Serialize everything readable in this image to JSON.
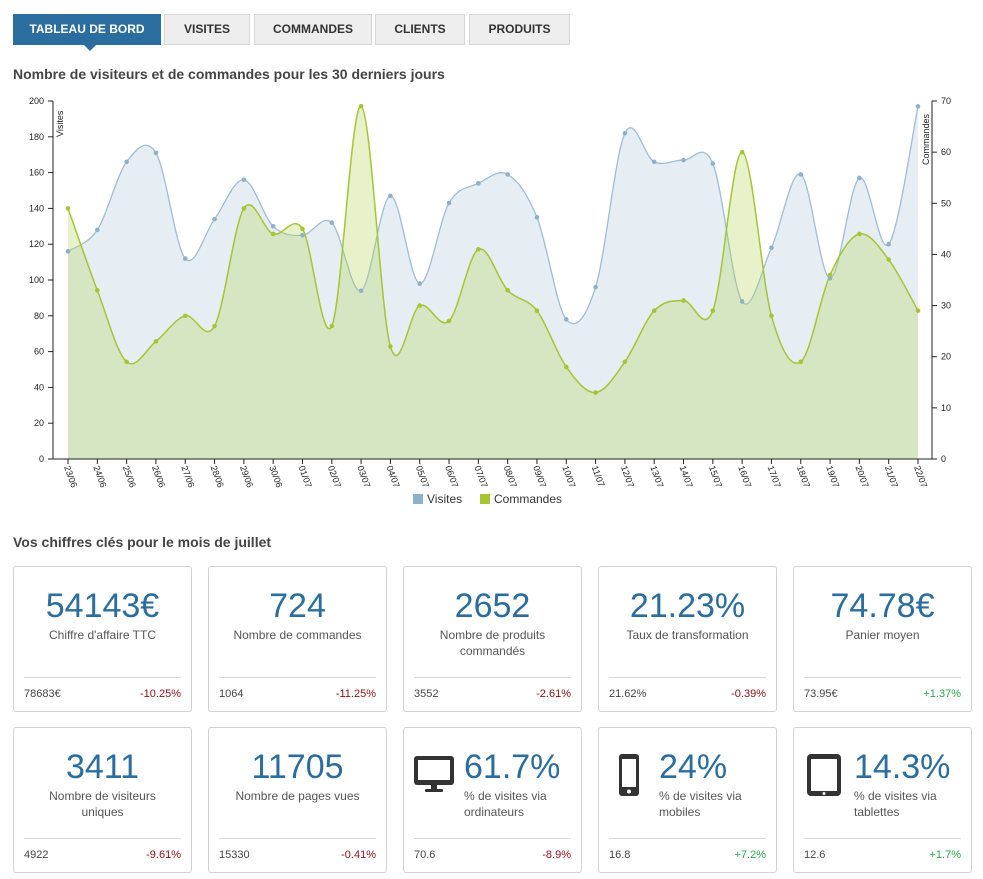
{
  "tabs": [
    {
      "label": "TABLEAU DE BORD",
      "active": true
    },
    {
      "label": "VISITES",
      "active": false
    },
    {
      "label": "COMMANDES",
      "active": false
    },
    {
      "label": "CLIENTS",
      "active": false
    },
    {
      "label": "PRODUITS",
      "active": false
    }
  ],
  "chart_title": "Nombre de visiteurs et de commandes pour les 30 derniers jours",
  "chart_data": {
    "type": "area",
    "title": "Nombre de visiteurs et de commandes pour les 30 derniers jours",
    "categories": [
      "23/06",
      "24/06",
      "25/06",
      "26/06",
      "27/06",
      "28/06",
      "29/06",
      "30/06",
      "01/07",
      "02/07",
      "03/07",
      "04/07",
      "05/07",
      "06/07",
      "07/07",
      "08/07",
      "09/07",
      "10/07",
      "11/07",
      "12/07",
      "13/07",
      "14/07",
      "15/07",
      "16/07",
      "17/07",
      "18/07",
      "19/07",
      "20/07",
      "21/07",
      "22/07"
    ],
    "y_left": {
      "label": "Visites",
      "ylim": [
        0,
        200
      ],
      "ticks": [
        0,
        20,
        40,
        60,
        80,
        100,
        120,
        140,
        160,
        180,
        200
      ]
    },
    "y_right": {
      "label": "Commandes",
      "ylim": [
        0,
        70
      ],
      "ticks": [
        0,
        10,
        20,
        30,
        40,
        50,
        60,
        70
      ]
    },
    "legend_position": "bottom",
    "series": [
      {
        "name": "Visites",
        "axis": "left",
        "color": "#8fb0c9",
        "values": [
          116,
          128,
          166,
          171,
          112,
          134,
          156,
          130,
          125,
          132,
          94,
          147,
          98,
          143,
          154,
          159,
          135,
          78,
          96,
          182,
          166,
          167,
          165,
          88,
          118,
          159,
          101,
          157,
          120,
          197
        ]
      },
      {
        "name": "Commandes",
        "axis": "right",
        "color": "#a5c534",
        "values": [
          49,
          33,
          19,
          23,
          28,
          26,
          49,
          44,
          45,
          26,
          69,
          22,
          30,
          27,
          41,
          33,
          29,
          18,
          13,
          19,
          29,
          31,
          29,
          60,
          28,
          19,
          36,
          44,
          39,
          29
        ]
      }
    ]
  },
  "kpi_title": "Vos chiffres clés pour le mois de juillet",
  "kpis": [
    {
      "value": "54143€",
      "label": "Chiffre d'affaire TTC",
      "prev": "78683€",
      "diff": "-10.25%",
      "trend": "neg"
    },
    {
      "value": "724",
      "label": "Nombre de commandes",
      "prev": "1064",
      "diff": "-11.25%",
      "trend": "neg"
    },
    {
      "value": "2652",
      "label": "Nombre de produits commandés",
      "prev": "3552",
      "diff": "-2.61%",
      "trend": "neg"
    },
    {
      "value": "21.23%",
      "label": "Taux de transformation",
      "prev": "21.62%",
      "diff": "-0.39%",
      "trend": "neg"
    },
    {
      "value": "74.78€",
      "label": "Panier moyen",
      "prev": "73.95€",
      "diff": "+1.37%",
      "trend": "pos"
    },
    {
      "value": "3411",
      "label": "Nombre de visiteurs uniques",
      "prev": "4922",
      "diff": "-9.61%",
      "trend": "neg"
    },
    {
      "value": "11705",
      "label": "Nombre de pages vues",
      "prev": "15330",
      "diff": "-0.41%",
      "trend": "neg"
    },
    {
      "value": "61.7%",
      "label": "% de visites via ordinateurs",
      "prev": "70.6",
      "diff": "-8.9%",
      "trend": "neg",
      "icon": "desktop-icon"
    },
    {
      "value": "24%",
      "label": "% de visites via mobiles",
      "prev": "16.8",
      "diff": "+7.2%",
      "trend": "pos",
      "icon": "mobile-icon"
    },
    {
      "value": "14.3%",
      "label": "% de visites via tablettes",
      "prev": "12.6",
      "diff": "+1.7%",
      "trend": "pos",
      "icon": "tablet-icon"
    }
  ]
}
